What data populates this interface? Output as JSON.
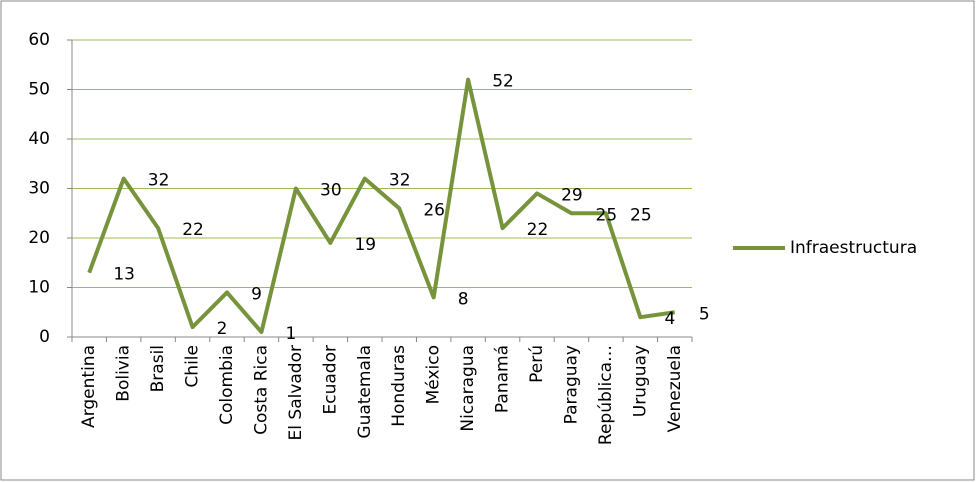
{
  "chart_data": {
    "type": "line",
    "categories": [
      "Argentina",
      "Bolivia",
      "Brasil",
      "Chile",
      "Colombia",
      "Costa Rica",
      "El Salvador",
      "Ecuador",
      "Guatemala",
      "Honduras",
      "México",
      "Nicaragua",
      "Panamá",
      "Perú",
      "Paraguay",
      "República…",
      "Uruguay",
      "Venezuela"
    ],
    "series": [
      {
        "name": "Infraestructura",
        "color": "#77933c",
        "values": [
          13,
          32,
          22,
          2,
          9,
          1,
          30,
          19,
          32,
          26,
          8,
          52,
          22,
          29,
          25,
          25,
          4,
          5
        ]
      }
    ],
    "ylim": [
      0,
      60
    ],
    "yticks": [
      0,
      10,
      20,
      30,
      40,
      50,
      60
    ],
    "grid": true,
    "legend": "right",
    "data_labels": true
  }
}
